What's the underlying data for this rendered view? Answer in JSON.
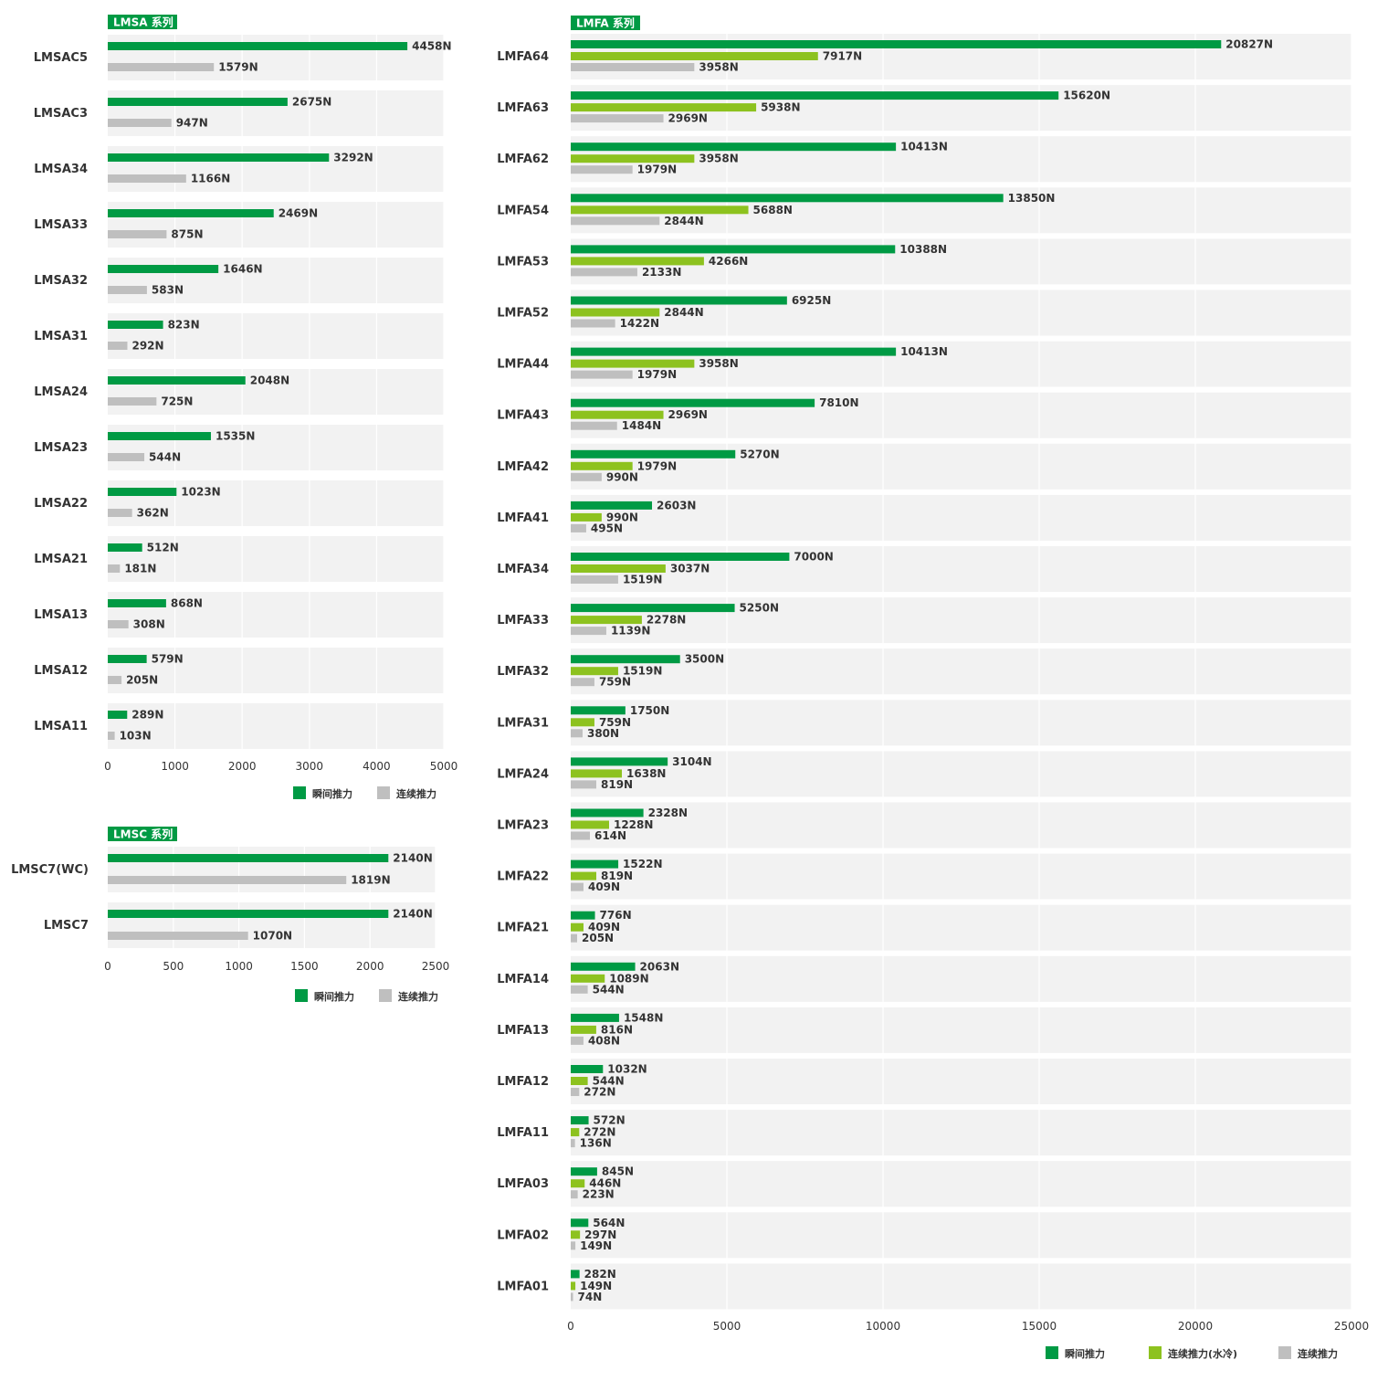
{
  "colors": {
    "instant": "#009a44",
    "water": "#8dc21f",
    "continuous": "#bfbfbf",
    "band": "#f2f2f2",
    "grid": "#ffffff"
  },
  "chart_data": [
    {
      "type": "bar",
      "orientation": "horizontal",
      "title": "LMSA 系列",
      "categories": [
        "LMSAC5",
        "LMSAC3",
        "LMSA34",
        "LMSA33",
        "LMSA32",
        "LMSA31",
        "LMSA24",
        "LMSA23",
        "LMSA22",
        "LMSA21",
        "LMSA13",
        "LMSA12",
        "LMSA11"
      ],
      "series": [
        {
          "name": "瞬间推力",
          "values": [
            4458,
            2675,
            3292,
            2469,
            1646,
            823,
            2048,
            1535,
            1023,
            512,
            868,
            579,
            289
          ]
        },
        {
          "name": "连续推力",
          "values": [
            1579,
            947,
            1166,
            875,
            583,
            292,
            725,
            544,
            362,
            181,
            308,
            205,
            103
          ]
        }
      ],
      "xlim": [
        0,
        5000
      ],
      "ticks": [
        0,
        1000,
        2000,
        3000,
        4000,
        5000
      ],
      "value_suffix": "N",
      "legend": "bottom-right"
    },
    {
      "type": "bar",
      "orientation": "horizontal",
      "title": "LMSC 系列",
      "categories": [
        "LMSC7(WC)",
        "LMSC7"
      ],
      "series": [
        {
          "name": "瞬间推力",
          "values": [
            2140,
            2140
          ]
        },
        {
          "name": "连续推力",
          "values": [
            1819,
            1070
          ]
        }
      ],
      "xlim": [
        0,
        2500
      ],
      "ticks": [
        0,
        500,
        1000,
        1500,
        2000,
        2500
      ],
      "value_suffix": "N",
      "legend": "bottom-right"
    },
    {
      "type": "bar",
      "orientation": "horizontal",
      "title": "LMFA 系列",
      "categories": [
        "LMFA64",
        "LMFA63",
        "LMFA62",
        "LMFA54",
        "LMFA53",
        "LMFA52",
        "LMFA44",
        "LMFA43",
        "LMFA42",
        "LMFA41",
        "LMFA34",
        "LMFA33",
        "LMFA32",
        "LMFA31",
        "LMFA24",
        "LMFA23",
        "LMFA22",
        "LMFA21",
        "LMFA14",
        "LMFA13",
        "LMFA12",
        "LMFA11",
        "LMFA03",
        "LMFA02",
        "LMFA01"
      ],
      "series": [
        {
          "name": "瞬间推力",
          "values": [
            20827,
            15620,
            10413,
            13850,
            10388,
            6925,
            10413,
            7810,
            5270,
            2603,
            7000,
            5250,
            3500,
            1750,
            3104,
            2328,
            1522,
            776,
            2063,
            1548,
            1032,
            572,
            845,
            564,
            282
          ]
        },
        {
          "name": "连续推力(水冷)",
          "values": [
            7917,
            5938,
            3958,
            5688,
            4266,
            2844,
            3958,
            2969,
            1979,
            990,
            3037,
            2278,
            1519,
            759,
            1638,
            1228,
            819,
            409,
            1089,
            816,
            544,
            272,
            446,
            297,
            149
          ]
        },
        {
          "name": "连续推力",
          "values": [
            3958,
            2969,
            1979,
            2844,
            2133,
            1422,
            1979,
            1484,
            990,
            495,
            1519,
            1139,
            759,
            380,
            819,
            614,
            409,
            205,
            544,
            408,
            272,
            136,
            223,
            149,
            74
          ]
        }
      ],
      "xlim": [
        0,
        25000
      ],
      "ticks": [
        0,
        5000,
        10000,
        15000,
        20000,
        25000
      ],
      "value_suffix": "N",
      "legend": "bottom-right"
    }
  ]
}
